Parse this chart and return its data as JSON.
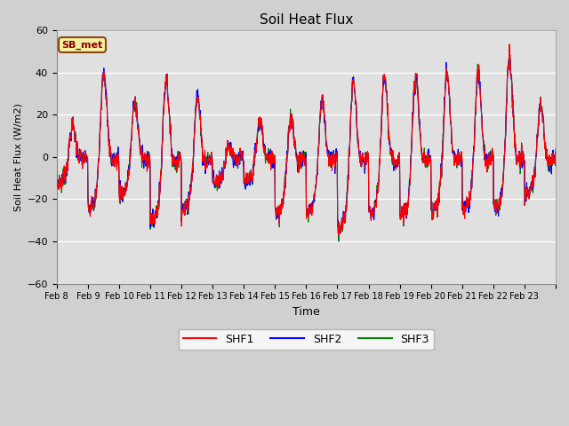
{
  "title": "Soil Heat Flux",
  "xlabel": "Time",
  "ylabel": "Soil Heat Flux (W/m2)",
  "ylim": [
    -60,
    60
  ],
  "yticks": [
    -60,
    -40,
    -20,
    0,
    20,
    40,
    60
  ],
  "colors": {
    "SHF1": "red",
    "SHF2": "blue",
    "SHF3": "green"
  },
  "linewidth": 0.8,
  "fig_bg_color": "#d0d0d0",
  "plot_bg_color": "#e0e0e0",
  "annotation_text": "SB_met",
  "annotation_bg": "#f5f0a0",
  "annotation_border": "#8B4513",
  "x_tick_labels": [
    "Feb 8",
    "Feb 9",
    "Feb 10",
    "Feb 11",
    "Feb 12",
    "Feb 13",
    "Feb 14",
    "Feb 15",
    "Feb 16",
    "Feb 17",
    "Feb 18",
    "Feb 19",
    "Feb 20",
    "Feb 21",
    "Feb 22",
    "Feb 23"
  ],
  "n_days": 16,
  "points_per_day": 96
}
